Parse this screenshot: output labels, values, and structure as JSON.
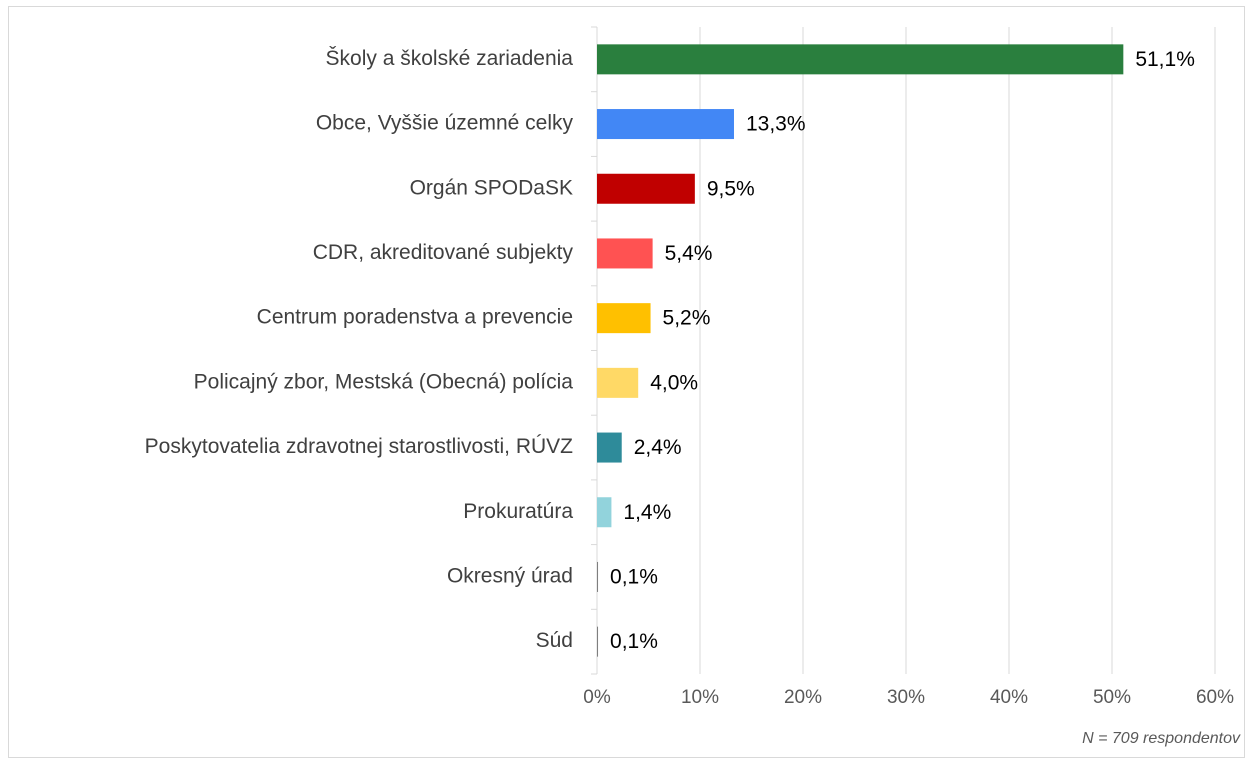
{
  "chart_data": {
    "type": "barh",
    "categories": [
      "Školy a školské zariadenia",
      "Obce, Vyššie územné celky",
      "Orgán SPODaSK",
      "CDR, akreditované subjekty",
      "Centrum poradenstva a prevencie",
      "Policajný zbor, Mestská (Obecná) polícia",
      "Poskytovatelia zdravotnej starostlivosti, RÚVZ",
      "Prokuratúra",
      "Okresný úrad",
      "Súd"
    ],
    "values": [
      51.1,
      13.3,
      9.5,
      5.4,
      5.2,
      4.0,
      2.4,
      1.4,
      0.1,
      0.1
    ],
    "value_labels": [
      "51,1%",
      "13,3%",
      "9,5%",
      "5,4%",
      "5,2%",
      "4,0%",
      "2,4%",
      "1,4%",
      "0,1%",
      "0,1%"
    ],
    "colors": [
      "#2a7f3e",
      "#4287f5",
      "#c00000",
      "#ff5252",
      "#ffc000",
      "#ffd966",
      "#2e8b9a",
      "#92d3dc",
      "#7f7f7f",
      "#7f7f7f"
    ],
    "xlim": [
      0,
      60
    ],
    "xticks": [
      {
        "value": 0,
        "label": "0%"
      },
      {
        "value": 10,
        "label": "10%"
      },
      {
        "value": 20,
        "label": "20%"
      },
      {
        "value": 30,
        "label": "30%"
      },
      {
        "value": 40,
        "label": "40%"
      },
      {
        "value": 50,
        "label": "50%"
      },
      {
        "value": 60,
        "label": "60%"
      }
    ],
    "grid": true,
    "annotation": "N = 709 respondentov"
  }
}
